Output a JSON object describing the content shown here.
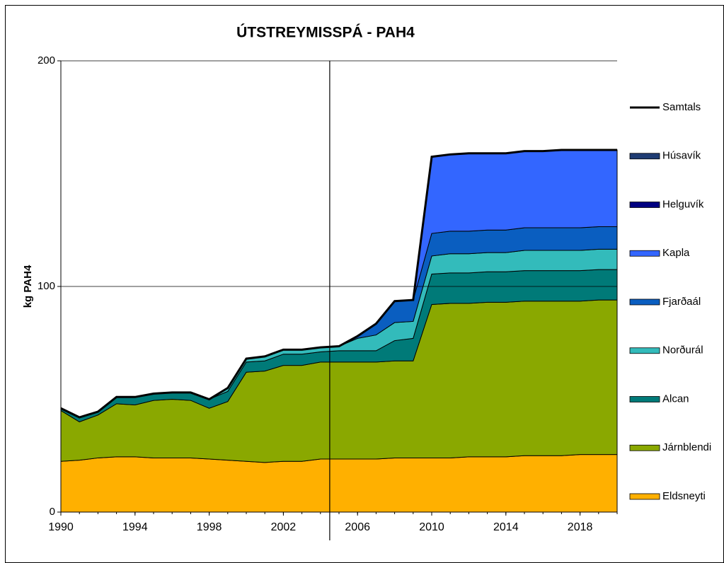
{
  "chart_data": {
    "type": "stacked_area",
    "title": "ÚTSTREYMISSPÁ - PAH4",
    "ylabel": "kg PAH4",
    "x": [
      1990,
      1991,
      1992,
      1993,
      1994,
      1995,
      1996,
      1997,
      1998,
      1999,
      2000,
      2001,
      2002,
      2003,
      2004,
      2005,
      2006,
      2007,
      2008,
      2009,
      2010,
      2011,
      2012,
      2013,
      2014,
      2015,
      2016,
      2017,
      2018,
      2019,
      2020
    ],
    "xlim": [
      1990,
      2020
    ],
    "xticks": [
      1990,
      1994,
      1998,
      2002,
      2006,
      2010,
      2014,
      2018
    ],
    "ylim": [
      0,
      200
    ],
    "yticks": [
      0,
      100,
      200
    ],
    "grid": true,
    "vline": 2004.5,
    "legend": "right",
    "series": [
      {
        "name": "Eldsneyti",
        "color": "#ffb000",
        "values": [
          22.5,
          23,
          24,
          24.5,
          24.5,
          24,
          24,
          24,
          23.5,
          23,
          22.5,
          22,
          22.5,
          22.5,
          23.5,
          23.5,
          23.5,
          23.5,
          24,
          24,
          24,
          24,
          24.5,
          24.5,
          24.5,
          25,
          25,
          25,
          25.5,
          25.5,
          25.5
        ]
      },
      {
        "name": "Járnblendi",
        "color": "#8aa800",
        "values": [
          22.5,
          17,
          19,
          23.5,
          23,
          25.5,
          26,
          25.5,
          22.5,
          26,
          39.5,
          40.5,
          42.5,
          42.5,
          43,
          43,
          43,
          43,
          43,
          43,
          68,
          68.5,
          68,
          68.5,
          68.5,
          68.5,
          68.5,
          68.5,
          68,
          68.5,
          68.5
        ]
      },
      {
        "name": "Alcan",
        "color": "#007a78",
        "values": [
          1,
          2,
          1.5,
          3,
          3.5,
          3,
          3,
          3.5,
          4,
          4.5,
          4.5,
          4.5,
          5,
          5,
          4.5,
          5,
          5,
          5,
          9,
          10,
          13.5,
          13.5,
          13.5,
          13.5,
          13.5,
          13.5,
          13.5,
          13.5,
          13.5,
          13.5,
          13.5
        ]
      },
      {
        "name": "Norðurál",
        "color": "#33bbbb",
        "values": [
          0,
          0,
          0,
          0,
          0,
          0,
          0,
          0,
          0,
          1.5,
          1.5,
          2,
          2,
          2,
          2,
          2,
          5.5,
          7,
          8,
          7.5,
          8,
          8.5,
          8.5,
          8.5,
          8.5,
          9,
          9,
          9,
          9,
          9,
          9
        ]
      },
      {
        "name": "Fjarðaál",
        "color": "#0a5ec0",
        "values": [
          0,
          0,
          0,
          0,
          0,
          0,
          0,
          0,
          0,
          0,
          0,
          0,
          0,
          0,
          0,
          0,
          1,
          5,
          9.5,
          9.5,
          10,
          10,
          10,
          10,
          10,
          10,
          10,
          10,
          10,
          10,
          10
        ]
      },
      {
        "name": "Kapla",
        "color": "#3366ff",
        "values": [
          0,
          0,
          0,
          0,
          0,
          0,
          0,
          0,
          0,
          0,
          0,
          0,
          0,
          0,
          0,
          0,
          0,
          0,
          0,
          0,
          34,
          34,
          34.5,
          34,
          34,
          34,
          34,
          34.5,
          34.5,
          34,
          34
        ]
      },
      {
        "name": "Helguvík",
        "color": "#000080",
        "values": [
          0,
          0,
          0,
          0,
          0,
          0,
          0,
          0,
          0,
          0,
          0,
          0,
          0,
          0,
          0,
          0,
          0,
          0,
          0,
          0,
          0,
          0,
          0,
          0,
          0,
          0,
          0,
          0,
          0,
          0,
          0
        ]
      },
      {
        "name": "Húsavík",
        "color": "#1f3c73",
        "values": [
          0,
          0,
          0,
          0,
          0,
          0,
          0,
          0,
          0,
          0,
          0,
          0,
          0,
          0,
          0,
          0,
          0,
          0,
          0,
          0,
          0,
          0,
          0,
          0,
          0,
          0,
          0,
          0,
          0,
          0,
          0
        ]
      },
      {
        "name": "Samtals",
        "color": "#000000",
        "kind": "line",
        "values": [
          46,
          42,
          44.5,
          51,
          51,
          52.5,
          53,
          53,
          50,
          55,
          68,
          69,
          72,
          72,
          73,
          73.5,
          78,
          83.5,
          93.5,
          94,
          157.5,
          158.5,
          159,
          159,
          159,
          160,
          160,
          160.5,
          160.5,
          160.5,
          160.5
        ]
      }
    ]
  }
}
